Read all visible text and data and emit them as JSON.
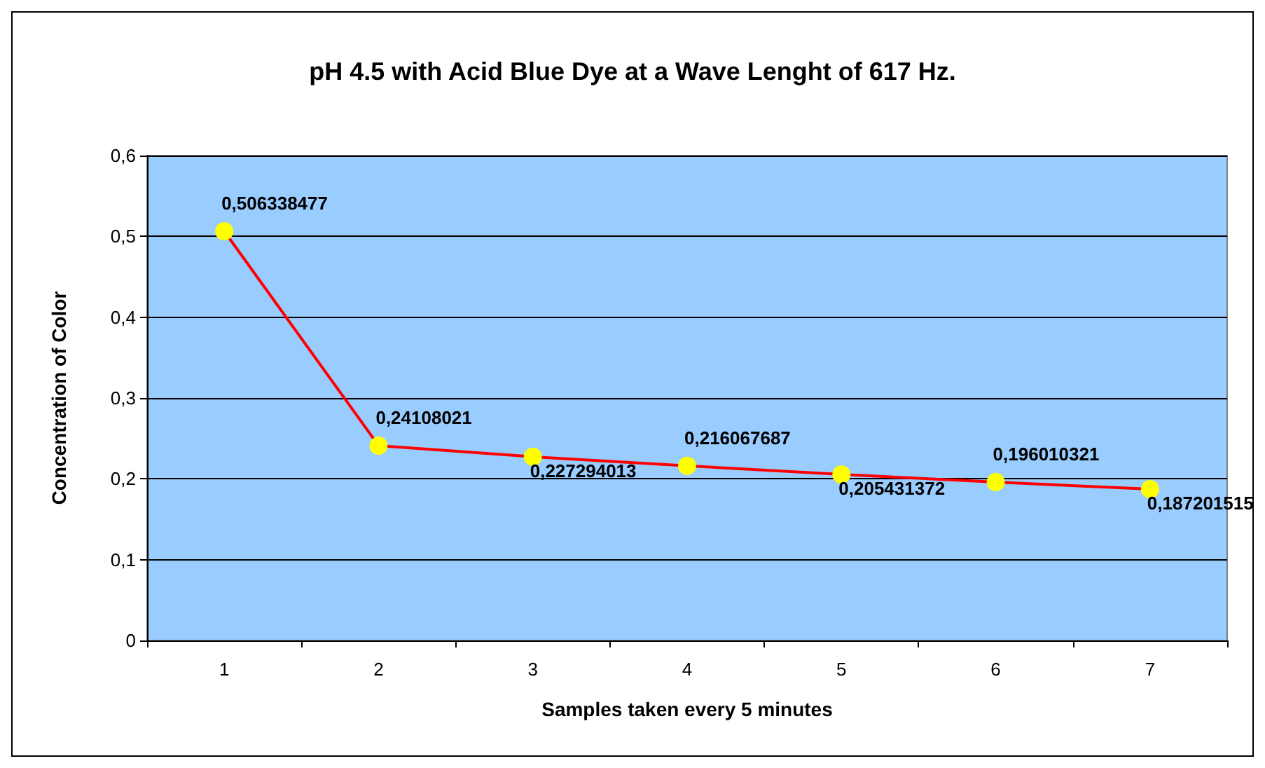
{
  "chart_data": {
    "type": "line",
    "title": "pH 4.5 with Acid Blue Dye at a Wave Lenght of 617 Hz.",
    "xlabel": "Samples taken every 5 minutes",
    "ylabel": "Concentration of Color",
    "categories": [
      "1",
      "2",
      "3",
      "4",
      "5",
      "6",
      "7"
    ],
    "series": [
      {
        "color": "#ff0000",
        "values": [
          0.506338477,
          0.24108021,
          0.227294013,
          0.216067687,
          0.205431372,
          0.196010321,
          0.187201515
        ],
        "value_labels": [
          "0,506338477",
          "0,24108021",
          "0,227294013",
          "0,216067687",
          "0,205431372",
          "0,196010321",
          "0,187201515"
        ]
      }
    ],
    "ylim": [
      0,
      0.6
    ],
    "yticks": [
      0,
      {
        "value": 0.1,
        "label": "0,1"
      },
      {
        "value": 0.2,
        "label": "0,2"
      },
      {
        "value": 0.3,
        "label": "0,3"
      },
      {
        "value": 0.4,
        "label": "0,4"
      },
      {
        "value": 0.5,
        "label": "0,5"
      },
      {
        "value": 0.6,
        "label": "0,6"
      }
    ],
    "grid": "y",
    "marker": "circle",
    "line_style": "solid"
  }
}
